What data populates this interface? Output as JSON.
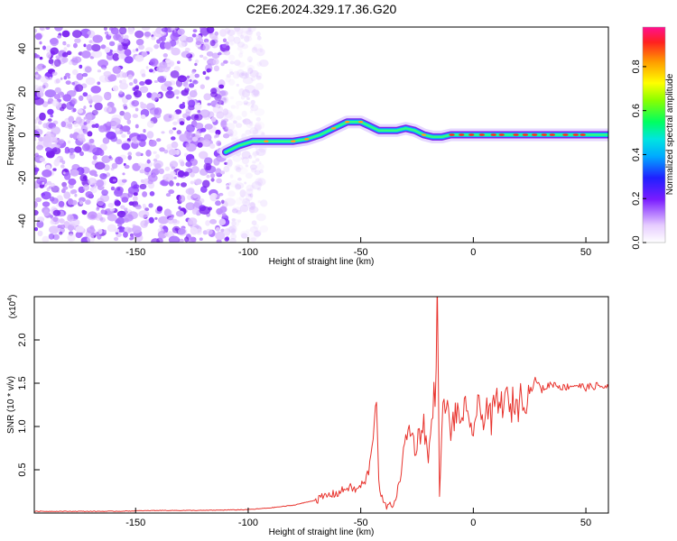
{
  "chart_data": [
    {
      "type": "heatmap",
      "title": "C2E6.2024.329.17.36.G20",
      "xlabel": "Height of straight line (km)",
      "ylabel": "Frequency (Hz)",
      "xlim": [
        -195,
        60
      ],
      "ylim": [
        -50,
        50
      ],
      "x_ticks": [
        "-150",
        "-100",
        "-50",
        "0",
        "50"
      ],
      "x_tick_values": [
        -150,
        -100,
        -50,
        0,
        50
      ],
      "y_ticks": [
        "-40",
        "-20",
        "0",
        "20",
        "40"
      ],
      "y_tick_values": [
        -40,
        -20,
        0,
        20,
        40
      ],
      "noise_region_x": [
        -195,
        -105
      ],
      "signal_track": {
        "x": [
          -110,
          -104,
          -98,
          -92,
          -86,
          -80,
          -74,
          -68,
          -62,
          -56,
          -50,
          -46,
          -42,
          -38,
          -34,
          -30,
          -26,
          -22,
          -18,
          -14,
          -10,
          -6,
          -2,
          2,
          10,
          20,
          30,
          40,
          50,
          60
        ],
        "y": [
          -8,
          -5,
          -3,
          -3,
          -3,
          -3,
          -2,
          0,
          3,
          6,
          6,
          4,
          2,
          2,
          2,
          3,
          2,
          0,
          -1,
          -1,
          0,
          0,
          0,
          0,
          0,
          0,
          0,
          0,
          0,
          0
        ]
      },
      "colorbar": {
        "label": "Normalized spectral amplitude",
        "ticks": [
          "0.0",
          "0.2",
          "0.4",
          "0.6",
          "0.8"
        ],
        "tick_values": [
          0.0,
          0.2,
          0.4,
          0.6,
          0.8
        ],
        "range": [
          0,
          0.98
        ]
      }
    },
    {
      "type": "line",
      "xlabel": "Height of straight line (km)",
      "ylabel": "SNR (10 * v/v)",
      "y_multiplier_label": "(x10",
      "y_multiplier_exp": "4",
      "y_multiplier_close": ")",
      "xlim": [
        -195,
        60
      ],
      "ylim": [
        0,
        2.5
      ],
      "x_ticks": [
        "-150",
        "-100",
        "-50",
        "0",
        "50"
      ],
      "x_tick_values": [
        -150,
        -100,
        -50,
        0,
        50
      ],
      "y_ticks": [
        "0.5",
        "1.0",
        "1.5",
        "2.0"
      ],
      "y_tick_values": [
        0.5,
        1.0,
        1.5,
        2.0
      ],
      "color": "#e8332d",
      "series": [
        {
          "x": [
            -195,
            -180,
            -160,
            -140,
            -120,
            -100,
            -90,
            -80,
            -70,
            -65,
            -60,
            -57,
            -55,
            -52,
            -50,
            -48,
            -46,
            -45,
            -44,
            -43,
            -42,
            -41,
            -40,
            -38,
            -36,
            -34,
            -32,
            -30,
            -28,
            -26,
            -24,
            -22,
            -20,
            -18,
            -17,
            -16,
            -15,
            -14,
            -12,
            -10,
            -8,
            -6,
            -4,
            -2,
            0,
            2,
            4,
            6,
            8,
            10,
            12,
            14,
            16,
            18,
            20,
            22,
            24,
            26,
            28,
            30,
            35,
            40,
            45,
            50,
            55,
            60
          ],
          "y": [
            0.02,
            0.02,
            0.02,
            0.03,
            0.03,
            0.04,
            0.06,
            0.09,
            0.15,
            0.2,
            0.23,
            0.28,
            0.3,
            0.26,
            0.32,
            0.35,
            0.55,
            0.7,
            1.2,
            1.3,
            0.4,
            0.2,
            0.12,
            0.06,
            0.1,
            0.2,
            0.5,
            0.85,
            1.0,
            0.75,
            0.9,
            1.05,
            0.6,
            1.2,
            1.45,
            2.5,
            0.15,
            1.1,
            1.25,
            0.95,
            1.15,
            1.05,
            1.25,
            0.95,
            1.0,
            1.2,
            1.1,
            1.25,
            1.05,
            1.3,
            1.2,
            1.4,
            1.15,
            1.3,
            1.25,
            1.4,
            1.35,
            1.45,
            1.55,
            1.42,
            1.5,
            1.45,
            1.48,
            1.45,
            1.47,
            1.45
          ]
        }
      ]
    }
  ]
}
